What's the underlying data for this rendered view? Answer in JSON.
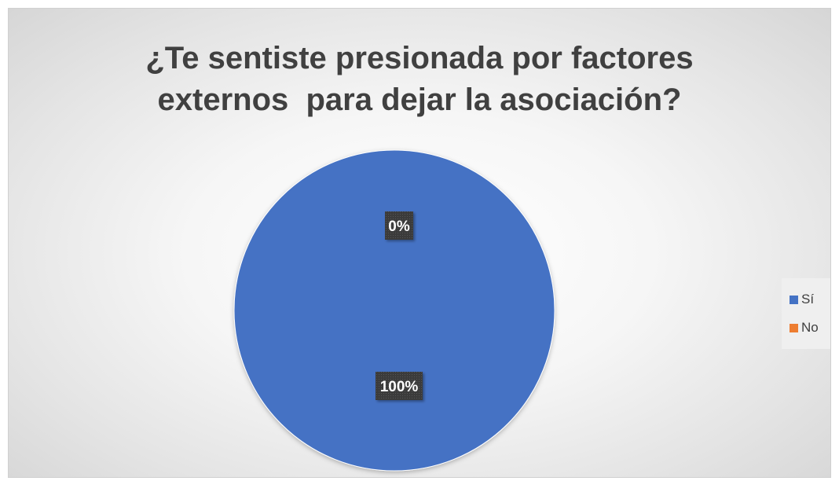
{
  "chart_data": {
    "type": "pie",
    "title": [
      "¿Te sentiste presionada por factores",
      "externos  para dejar la asociación?"
    ],
    "categories": [
      "Sí",
      "No"
    ],
    "values": [
      100,
      0
    ],
    "data_labels": [
      "100%",
      "0%"
    ],
    "colors": [
      "#4472C4",
      "#ED7D31"
    ],
    "legend_position": "right"
  }
}
